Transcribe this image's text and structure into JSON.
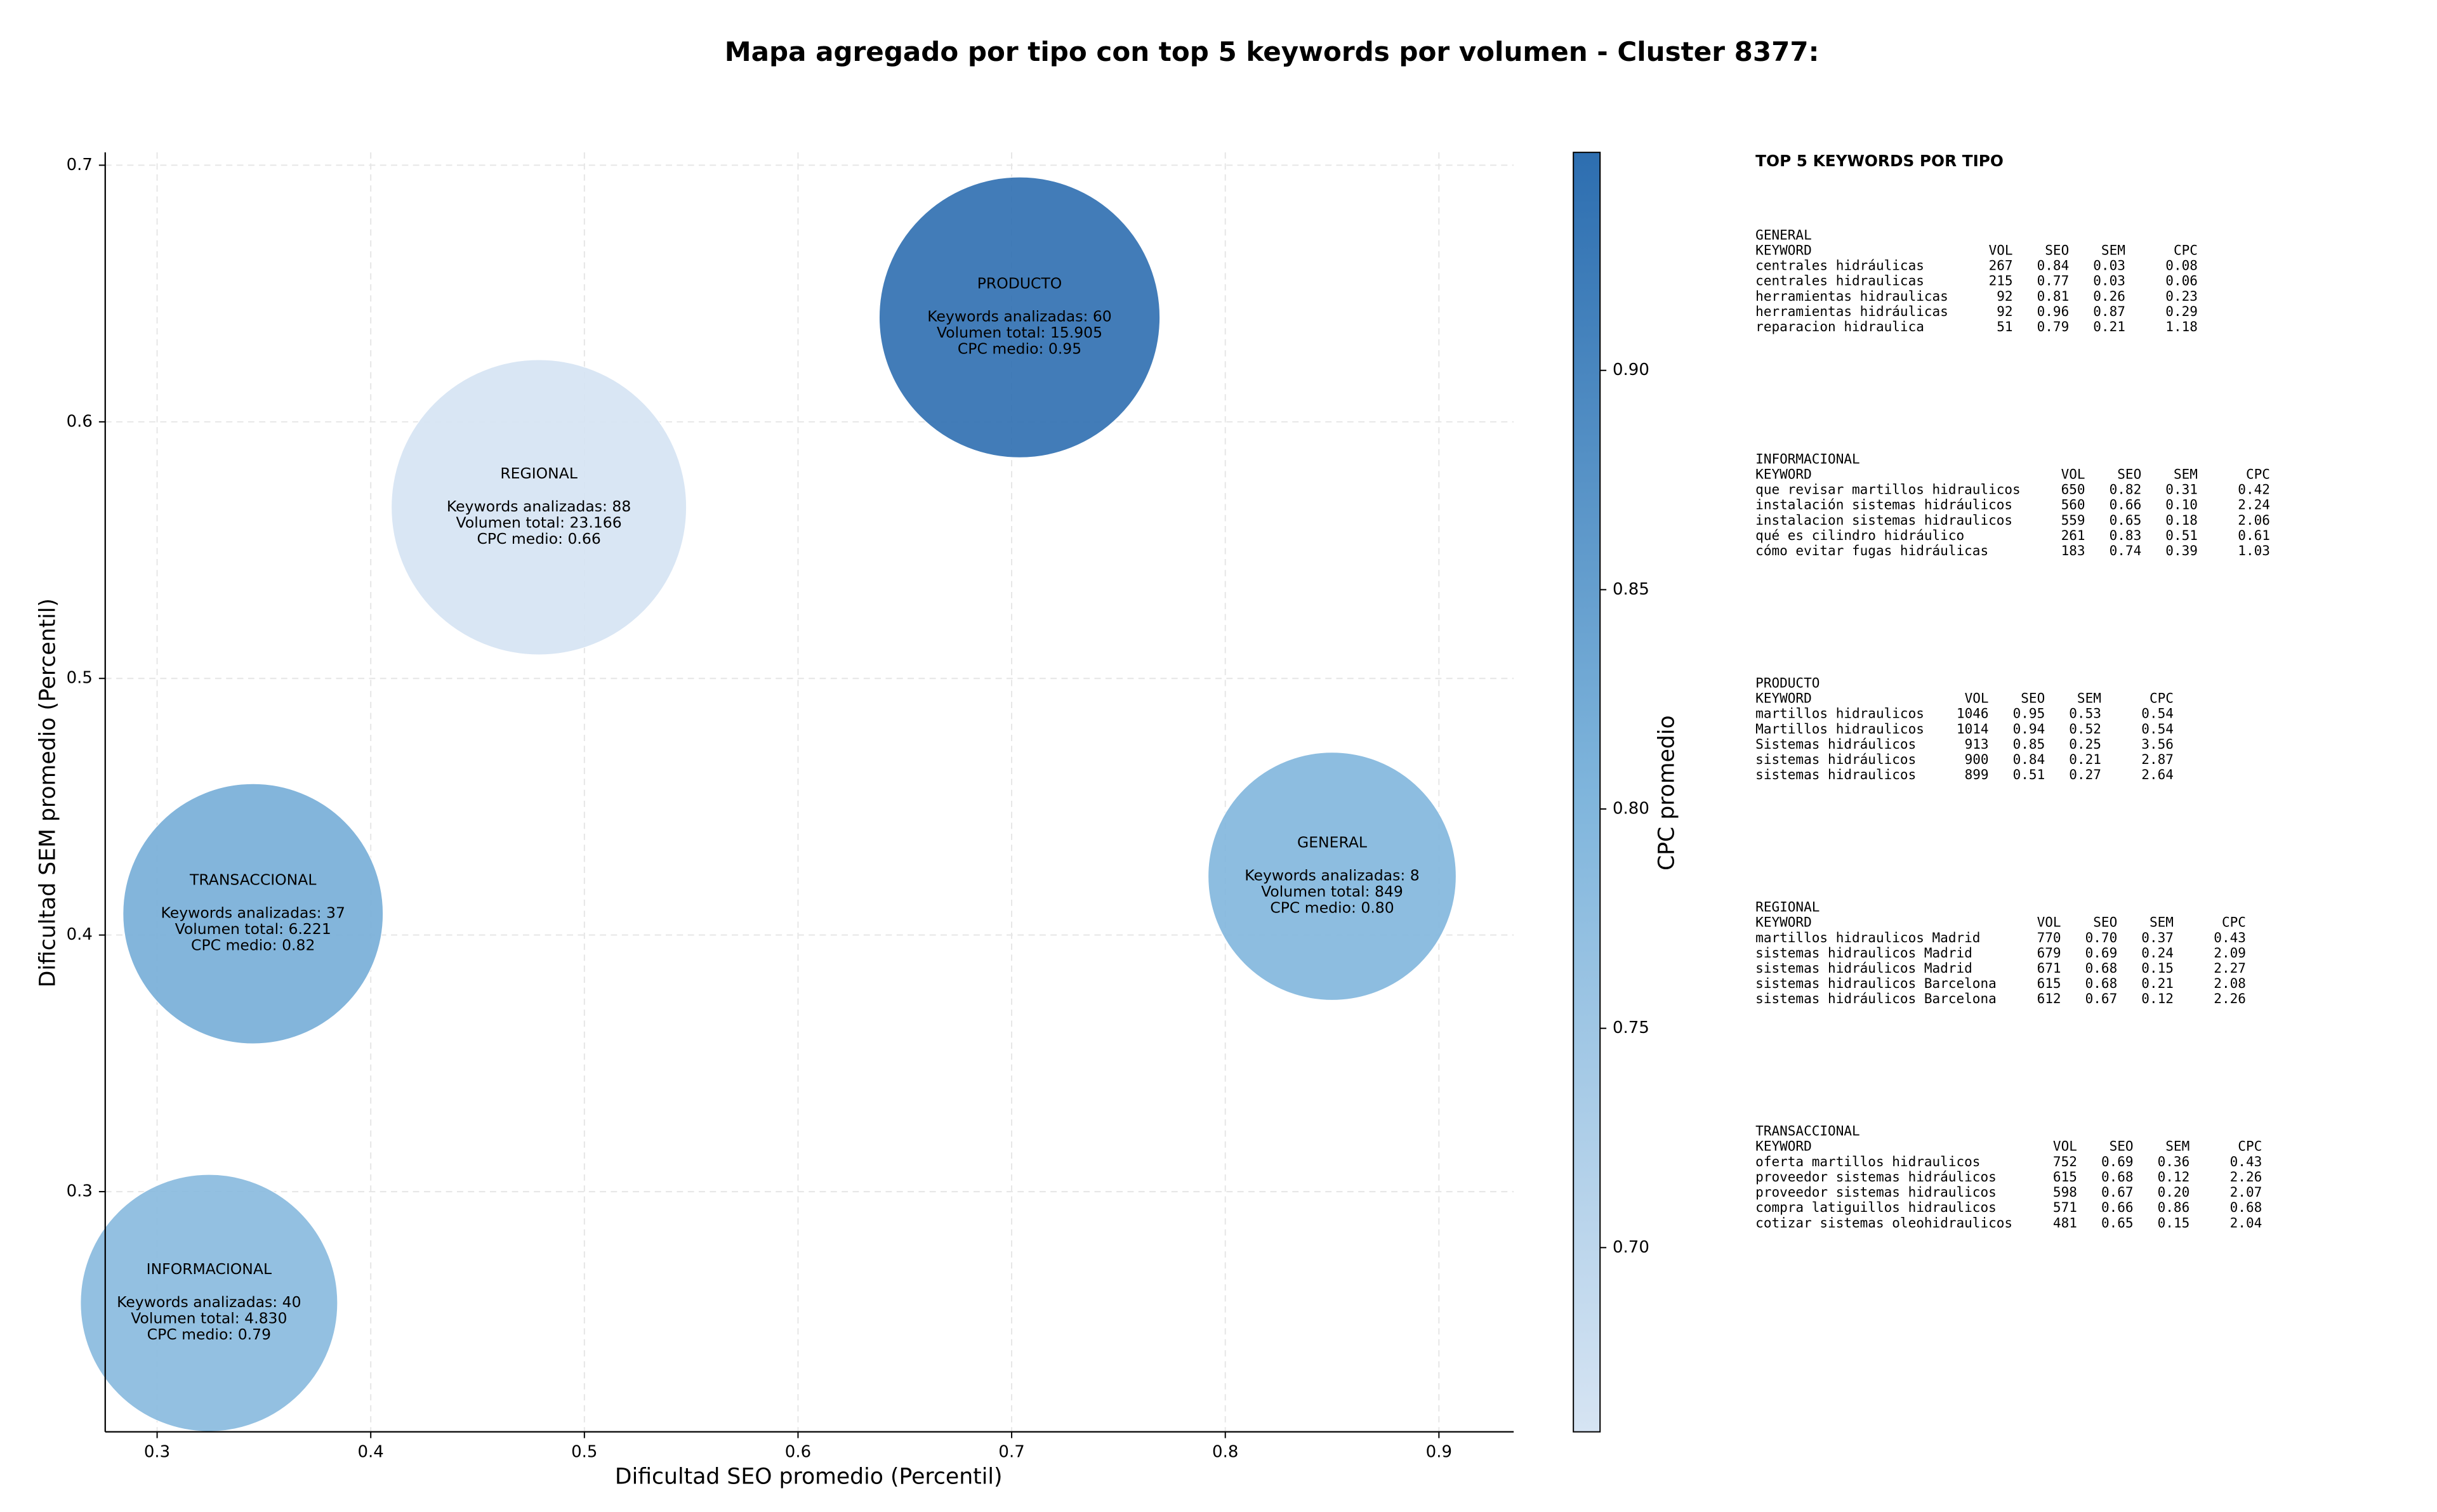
{
  "chart_data": {
    "type": "scatter",
    "title": "Mapa agregado por tipo con top 5 keywords por volumen - Cluster 8377:",
    "xlabel": "Dificultad SEO promedio (Percentil)",
    "ylabel": "Dificultad SEM promedio (Percentil)",
    "xlim": [
      0.2757,
      0.935
    ],
    "ylim": [
      0.2064,
      0.705
    ],
    "xticks": [
      0.3,
      0.4,
      0.5,
      0.6,
      0.7,
      0.8,
      0.9
    ],
    "yticks": [
      0.3,
      0.4,
      0.5,
      0.6,
      0.7
    ],
    "grid": true,
    "colorbar": {
      "label": "CPC promedio",
      "clim": [
        0.658,
        0.9497
      ],
      "ticks": [
        {
          "value": 0.7,
          "label": "0.70"
        },
        0.75,
        {
          "value": 0.8,
          "label": "0.80"
        },
        0.85,
        {
          "value": 0.9,
          "label": "0.90"
        }
      ]
    },
    "points": [
      {
        "name": "PRODUCTO",
        "x": 0.7037,
        "y": 0.6407,
        "keywords": 60,
        "volume": 15905,
        "cpc": 0.95,
        "labels": [
          "Keywords analizadas: 60",
          "Volumen total: 15.905",
          "CPC medio: 0.95"
        ]
      },
      {
        "name": "REGIONAL",
        "x": 0.4787,
        "y": 0.5667,
        "keywords": 88,
        "volume": 23166,
        "cpc": 0.66,
        "labels": [
          "Keywords analizadas: 88",
          "Volumen total: 23.166",
          "CPC medio: 0.66"
        ]
      },
      {
        "name": "TRANSACCIONAL",
        "x": 0.3449,
        "y": 0.4083,
        "keywords": 37,
        "volume": 6221,
        "cpc": 0.82,
        "labels": [
          "Keywords analizadas: 37",
          "Volumen total: 6.221",
          "CPC medio: 0.82"
        ]
      },
      {
        "name": "GENERAL",
        "x": 0.85,
        "y": 0.4229,
        "keywords": 8,
        "volume": 849,
        "cpc": 0.8,
        "labels": [
          "Keywords analizadas: 8",
          "Volumen total: 849",
          "CPC medio: 0.80"
        ]
      },
      {
        "name": "INFORMACIONAL",
        "x": 0.3243,
        "y": 0.2566,
        "keywords": 40,
        "volume": 4830,
        "cpc": 0.79,
        "labels": [
          "Keywords analizadas: 40",
          "Volumen total: 4.830",
          "CPC medio: 0.79"
        ]
      }
    ],
    "panel": {
      "title": "TOP 5 KEYWORDS POR TIPO",
      "header": [
        "KEYWORD",
        "VOL",
        "SEO",
        "SEM",
        "CPC"
      ],
      "sections": [
        {
          "name": "GENERAL",
          "rows": [
            [
              "centrales hidráulicas",
              "267",
              "0.84",
              "0.03",
              "0.08"
            ],
            [
              "centrales hidraulicas",
              "215",
              "0.77",
              "0.03",
              "0.06"
            ],
            [
              "herramientas hidraulicas",
              "92",
              "0.81",
              "0.26",
              "0.23"
            ],
            [
              "herramientas hidráulicas",
              "92",
              "0.96",
              "0.87",
              "0.29"
            ],
            [
              "reparacion hidraulica",
              "51",
              "0.79",
              "0.21",
              "1.18"
            ]
          ]
        },
        {
          "name": "INFORMACIONAL",
          "rows": [
            [
              "que revisar martillos hidraulicos",
              "650",
              "0.82",
              "0.31",
              "0.42"
            ],
            [
              "instalación sistemas hidráulicos",
              "560",
              "0.66",
              "0.10",
              "2.24"
            ],
            [
              "instalacion sistemas hidraulicos",
              "559",
              "0.65",
              "0.18",
              "2.06"
            ],
            [
              "qué es cilindro hidráulico",
              "261",
              "0.83",
              "0.51",
              "0.61"
            ],
            [
              "cómo evitar fugas hidráulicas",
              "183",
              "0.74",
              "0.39",
              "1.03"
            ]
          ]
        },
        {
          "name": "PRODUCTO",
          "rows": [
            [
              "martillos hidraulicos",
              "1046",
              "0.95",
              "0.53",
              "0.54"
            ],
            [
              "Martillos hidraulicos",
              "1014",
              "0.94",
              "0.52",
              "0.54"
            ],
            [
              "Sistemas hidráulicos",
              "913",
              "0.85",
              "0.25",
              "3.56"
            ],
            [
              "sistemas hidráulicos",
              "900",
              "0.84",
              "0.21",
              "2.87"
            ],
            [
              "sistemas hidraulicos",
              "899",
              "0.51",
              "0.27",
              "2.64"
            ]
          ]
        },
        {
          "name": "REGIONAL",
          "rows": [
            [
              "martillos hidraulicos Madrid",
              "770",
              "0.70",
              "0.37",
              "0.43"
            ],
            [
              "sistemas hidraulicos Madrid",
              "679",
              "0.69",
              "0.24",
              "2.09"
            ],
            [
              "sistemas hidráulicos Madrid",
              "671",
              "0.68",
              "0.15",
              "2.27"
            ],
            [
              "sistemas hidraulicos Barcelona",
              "615",
              "0.68",
              "0.21",
              "2.08"
            ],
            [
              "sistemas hidráulicos Barcelona",
              "612",
              "0.67",
              "0.12",
              "2.26"
            ]
          ]
        },
        {
          "name": "TRANSACCIONAL",
          "rows": [
            [
              "oferta martillos hidraulicos",
              "752",
              "0.69",
              "0.36",
              "0.43"
            ],
            [
              "proveedor sistemas hidráulicos",
              "615",
              "0.68",
              "0.12",
              "2.26"
            ],
            [
              "proveedor sistemas hidraulicos",
              "598",
              "0.67",
              "0.20",
              "2.07"
            ],
            [
              "compra latiguillos hidraulicos",
              "571",
              "0.66",
              "0.86",
              "0.68"
            ],
            [
              "cotizar sistemas oleohidraulicos",
              "481",
              "0.65",
              "0.15",
              "2.04"
            ]
          ]
        }
      ]
    }
  }
}
